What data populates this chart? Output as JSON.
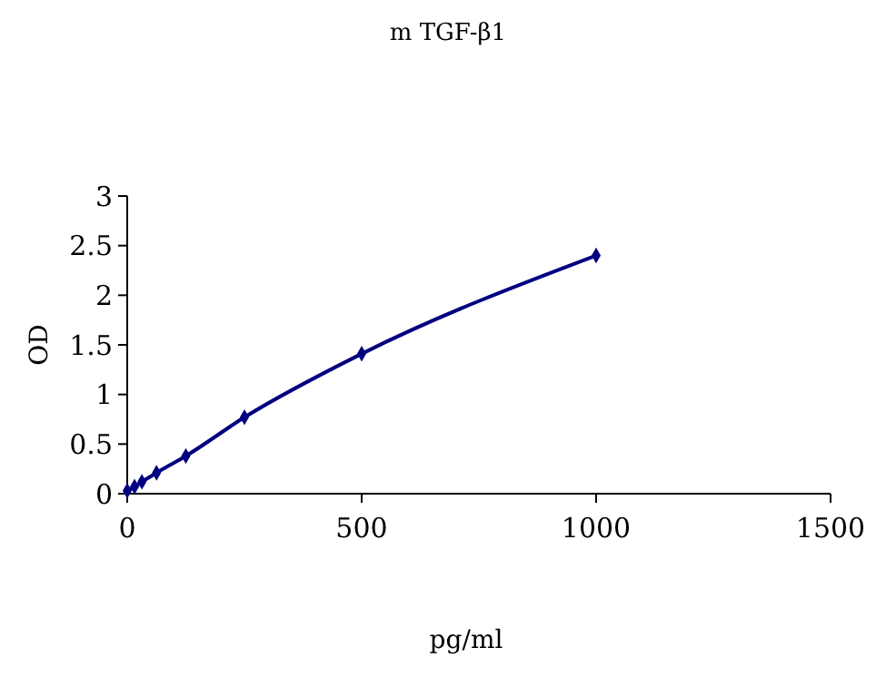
{
  "chart_data": {
    "type": "line",
    "title": "m TGF-β1",
    "xlabel": "pg/ml",
    "ylabel": "OD",
    "series": [
      {
        "color": "#000080",
        "x": [
          0,
          15.6,
          31.25,
          62.5,
          125,
          250,
          500,
          1000
        ],
        "values": [
          0.03,
          0.07,
          0.12,
          0.21,
          0.38,
          0.77,
          1.41,
          2.4
        ]
      }
    ],
    "xlim": [
      0,
      1500
    ],
    "xticks": [
      0,
      500,
      1000,
      1500
    ],
    "ylim": [
      0,
      3
    ],
    "yticks": [
      0,
      0.5,
      1,
      1.5,
      2,
      2.5,
      3
    ],
    "marker": "diamond",
    "line_style": "solid",
    "grid": false
  }
}
